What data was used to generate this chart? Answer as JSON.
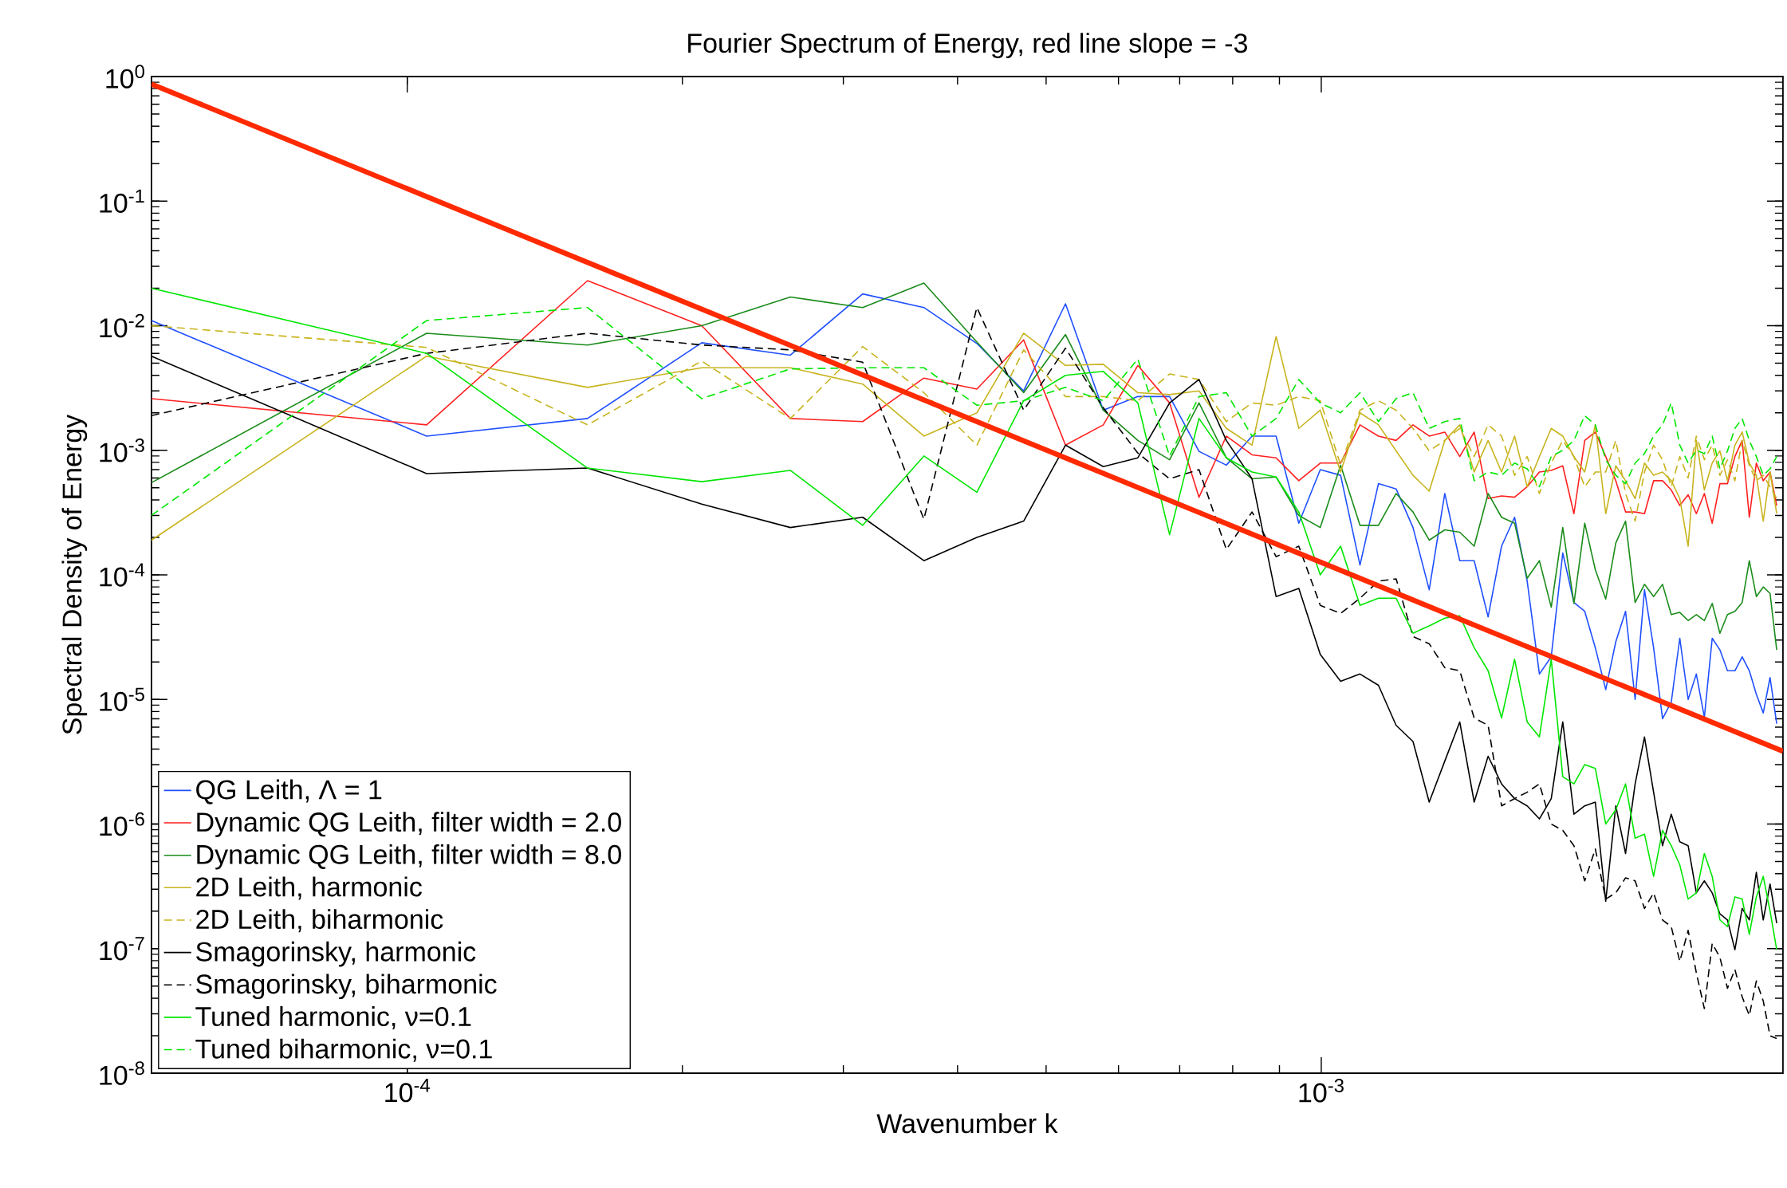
{
  "chart_data": {
    "type": "line",
    "title": "Fourier Spectrum of Energy, red line slope = -3",
    "xlabel": "Wavenumber k",
    "ylabel": "Spectral Density of Energy",
    "log": "xy",
    "legend": "bottom left",
    "xlim": [
      5.25e-05,
      0.0032
    ],
    "ylim": [
      1e-08,
      1
    ],
    "xticks": [
      {
        "value": 0.0001,
        "label": "10$^{-4}$"
      },
      {
        "value": 0.001,
        "label": "10$^{-3}$"
      }
    ],
    "yticks": [
      {
        "value": 1e-08,
        "label": "10$^{-8}$"
      },
      {
        "value": 1e-07,
        "label": "10$^{-7}$"
      },
      {
        "value": 1e-06,
        "label": "10$^{-6}$"
      },
      {
        "value": 1e-05,
        "label": "10$^{-5}$"
      },
      {
        "value": 0.0001,
        "label": "10$^{-4}$"
      },
      {
        "value": 0.001,
        "label": "10$^{-3}$"
      },
      {
        "value": 0.01,
        "label": "10$^{-2}$"
      },
      {
        "value": 0.1,
        "label": "10$^{-1}$"
      },
      {
        "value": 1,
        "label": "10$^{0}$"
      }
    ],
    "x": [
      5.25e-05,
      0.000105,
      0.0001575,
      0.00021,
      0.0002625,
      0.000315,
      0.0003675,
      0.00042,
      0.0004725,
      0.000525,
      0.0005775,
      0.00063,
      0.0006825,
      0.000735,
      0.0007875,
      0.00084,
      0.0008925,
      0.000945,
      0.0009975,
      0.00105,
      0.0011025,
      0.001155,
      0.0012075,
      0.00126,
      0.0013125,
      0.001365,
      0.0014175,
      0.00147,
      0.0015225,
      0.001575,
      0.0016275,
      0.00168,
      0.0017325,
      0.001785,
      0.0018375,
      0.00189,
      0.0019425,
      0.001995,
      0.0020475,
      0.0021,
      0.0021525,
      0.002205,
      0.0022575,
      0.00231,
      0.0023625,
      0.002415,
      0.0024675,
      0.00252,
      0.0025725,
      0.002625,
      0.0026775,
      0.00273,
      0.0027825,
      0.002835,
      0.0028875,
      0.00294,
      0.0029925,
      0.003045,
      0.0030975,
      0.00315
    ],
    "series": [
      {
        "name": "QG Leith,  Λ = 1",
        "color": "#1f4fff",
        "line_style": "solid",
        "values": [
          0.011,
          0.0013,
          0.0018,
          0.0073,
          0.0058,
          0.018,
          0.014,
          0.0072,
          0.003,
          0.015,
          0.0021,
          0.0027,
          0.0027,
          0.00098,
          0.00076,
          0.0013,
          0.0013,
          0.00026,
          0.0007,
          0.00063,
          0.00012,
          0.00054,
          0.00049,
          0.00024,
          7.6e-05,
          0.00045,
          0.00013,
          0.00013,
          4.6e-05,
          0.00017,
          0.00029,
          8.9e-05,
          1.6e-05,
          2.2e-05,
          0.00015,
          6e-05,
          5.1e-05,
          2.6e-05,
          1.2e-05,
          2.9e-05,
          5.1e-05,
          1e-05,
          7.6e-05,
          2.6e-05,
          7e-06,
          9.5e-06,
          3.1e-05,
          1e-05,
          1.6e-05,
          7.2e-06,
          3.1e-05,
          2.5e-05,
          1.7e-05,
          1.7e-05,
          2.2e-05,
          1.7e-05,
          1.1e-05,
          7.8e-06,
          1.5e-05,
          6.4e-06
        ]
      },
      {
        "name": "Dynamic QG Leith, filter width = 2.0",
        "color": "#ff2020",
        "line_style": "solid",
        "values": [
          0.0026,
          0.0016,
          0.023,
          0.01,
          0.0018,
          0.0017,
          0.0038,
          0.0031,
          0.0077,
          0.0011,
          0.0016,
          0.0048,
          0.0024,
          0.00042,
          0.0013,
          0.00092,
          0.00087,
          0.00057,
          0.00079,
          0.00079,
          0.0016,
          0.0013,
          0.0012,
          0.0016,
          0.0013,
          0.0014,
          0.00089,
          0.0014,
          0.00041,
          0.00043,
          0.00042,
          0.00051,
          0.00067,
          0.00069,
          0.00075,
          0.00031,
          0.0012,
          0.0014,
          0.00089,
          0.00057,
          0.00032,
          0.00032,
          0.00031,
          0.00057,
          0.00057,
          0.00048,
          0.00036,
          0.00044,
          0.00031,
          0.00045,
          0.00026,
          0.00054,
          0.00054,
          0.00089,
          0.0012,
          0.00029,
          0.00079,
          0.00057,
          0.00067,
          0.00036
        ]
      },
      {
        "name": "Dynamic QG Leith, filter width = 8.0",
        "color": "#1a8c1a",
        "line_style": "solid",
        "values": [
          0.00055,
          0.0087,
          0.007,
          0.01,
          0.017,
          0.014,
          0.022,
          0.0074,
          0.0029,
          0.0085,
          0.0021,
          0.0012,
          0.00084,
          0.0024,
          0.00087,
          0.00059,
          0.00061,
          0.0003,
          0.00024,
          0.00076,
          0.00025,
          0.00025,
          0.00045,
          0.00032,
          0.00019,
          0.00023,
          0.00022,
          0.00017,
          0.00045,
          0.00029,
          0.00026,
          9.4e-05,
          0.00013,
          5.5e-05,
          0.00024,
          5.9e-05,
          0.00026,
          0.00011,
          6.4e-05,
          0.00018,
          0.00027,
          6e-05,
          8.4e-05,
          6.7e-05,
          8.4e-05,
          4.8e-05,
          5e-05,
          4.3e-05,
          4.8e-05,
          4.3e-05,
          5.9e-05,
          3.4e-05,
          4.8e-05,
          5.1e-05,
          6e-05,
          0.00013,
          6.7e-05,
          8e-05,
          7.1e-05,
          2.5e-05
        ]
      },
      {
        "name": "2D Leith, harmonic",
        "color": "#c8b41e",
        "line_style": "solid",
        "values": [
          0.00019,
          0.0057,
          0.0032,
          0.0046,
          0.0046,
          0.0034,
          0.0013,
          0.002,
          0.0087,
          0.0048,
          0.0049,
          0.0029,
          0.0028,
          0.003,
          0.0015,
          0.0011,
          0.0082,
          0.0015,
          0.0021,
          0.00067,
          0.002,
          0.0016,
          0.00099,
          0.00063,
          0.00047,
          0.0012,
          0.0016,
          0.00067,
          0.0012,
          0.00067,
          0.0013,
          0.00051,
          0.00089,
          0.0015,
          0.0013,
          0.00089,
          0.00067,
          0.0016,
          0.00031,
          0.00075,
          0.00057,
          0.00041,
          0.00079,
          0.00063,
          0.00067,
          0.00057,
          0.00041,
          0.00017,
          0.0012,
          0.00048,
          0.00079,
          0.00099,
          0.00057,
          0.0011,
          0.0014,
          0.00079,
          0.00063,
          0.00027,
          0.00067,
          0.00031
        ]
      },
      {
        "name": "2D Leith, biharmonic",
        "color": "#c8b41e",
        "line_style": "dashed",
        "values": [
          0.01,
          0.0067,
          0.0016,
          0.0052,
          0.0018,
          0.0068,
          0.0029,
          0.0011,
          0.0064,
          0.0027,
          0.0027,
          0.0025,
          0.0041,
          0.0037,
          0.0017,
          0.0024,
          0.0023,
          0.0027,
          0.0025,
          0.00076,
          0.0021,
          0.0025,
          0.0021,
          0.0015,
          0.00099,
          0.0012,
          0.0015,
          0.00089,
          0.0016,
          0.0013,
          0.00063,
          0.00089,
          0.00045,
          0.00079,
          0.0012,
          0.00089,
          0.00051,
          0.00067,
          0.00067,
          0.0012,
          0.00045,
          0.00027,
          0.00067,
          0.0011,
          0.00084,
          0.00051,
          0.00089,
          0.0006,
          0.0013,
          0.00084,
          0.0011,
          0.00063,
          0.00084,
          0.00057,
          0.0012,
          0.00075,
          0.00057,
          0.00063,
          0.00051,
          0.00041
        ]
      },
      {
        "name": "Smagorinsky, harmonic",
        "color": "#000000",
        "line_style": "solid",
        "values": [
          0.0057,
          0.00065,
          0.00072,
          0.00037,
          0.00024,
          0.00029,
          0.00013,
          0.0002,
          0.00027,
          0.0011,
          0.00074,
          0.00087,
          0.0024,
          0.0037,
          0.0012,
          0.00059,
          6.7e-05,
          7.8e-05,
          2.3e-05,
          1.4e-05,
          1.6e-05,
          1.3e-05,
          6.2e-06,
          4.6e-06,
          1.5e-06,
          3.2e-06,
          6.6e-06,
          1.5e-06,
          3.5e-06,
          2.1e-06,
          1.6e-06,
          1.4e-06,
          1.1e-06,
          1.6e-06,
          6.6e-06,
          1.2e-06,
          1.4e-06,
          1.5e-06,
          2.4e-07,
          1.4e-06,
          5.8e-07,
          2.1e-06,
          5e-06,
          1.8e-06,
          6.7e-07,
          1.2e-06,
          7.2e-07,
          6.7e-07,
          2.8e-07,
          3.5e-07,
          2.8e-07,
          1.9e-07,
          1.7e-07,
          9.8e-08,
          2.1e-07,
          1.7e-07,
          4.1e-07,
          1.7e-07,
          3.3e-07,
          1.6e-07
        ]
      },
      {
        "name": "Smagorinsky, biharmonic",
        "color": "#000000",
        "line_style": "dashed",
        "values": [
          0.0019,
          0.006,
          0.0087,
          0.007,
          0.0064,
          0.0051,
          0.00028,
          0.014,
          0.0021,
          0.0066,
          0.0022,
          0.00095,
          0.00059,
          0.0007,
          0.00016,
          0.00032,
          0.00014,
          0.00017,
          5.7e-05,
          4.9e-05,
          6.5e-05,
          8.9e-05,
          9.3e-05,
          3.2e-05,
          2.8e-05,
          1.8e-05,
          1.7e-05,
          7.1e-06,
          6.2e-06,
          1.4e-06,
          1.6e-06,
          1.8e-06,
          2.1e-06,
          1e-06,
          8.9e-07,
          6.7e-07,
          3.5e-07,
          6.3e-07,
          2.5e-07,
          2.8e-07,
          3.7e-07,
          3.5e-07,
          2.1e-07,
          2.8e-07,
          1.7e-07,
          1.5e-07,
          7.9e-08,
          1.4e-07,
          6.4e-08,
          3.3e-08,
          1.1e-07,
          8.5e-08,
          4.8e-08,
          6.8e-08,
          4.1e-08,
          2.9e-08,
          5.5e-08,
          3.8e-08,
          2e-08,
          1.9e-08
        ]
      },
      {
        "name": "Tuned harmonic,  ν=0.1",
        "color": "#00e600",
        "line_style": "solid",
        "values": [
          0.02,
          0.006,
          0.00072,
          0.00056,
          0.00069,
          0.00025,
          0.0009,
          0.00046,
          0.0025,
          0.004,
          0.0043,
          0.0024,
          0.00021,
          0.0018,
          0.00087,
          0.00067,
          0.00061,
          0.00032,
          0.0001,
          0.00017,
          5.7e-05,
          6.5e-05,
          6.5e-05,
          3.4e-05,
          3.9e-05,
          4.5e-05,
          4.7e-05,
          2.6e-05,
          1.7e-05,
          7.1e-06,
          2.1e-05,
          6.6e-06,
          5e-06,
          2.1e-05,
          2.4e-06,
          2.1e-06,
          3e-06,
          2.8e-06,
          1e-06,
          1.3e-06,
          2.1e-06,
          7.7e-07,
          8.3e-07,
          3.8e-07,
          8.9e-07,
          6.7e-07,
          4.7e-07,
          2.5e-07,
          2.8e-07,
          5.8e-07,
          3.8e-07,
          1.7e-07,
          1.5e-07,
          2.6e-07,
          2.5e-07,
          1.3e-07,
          2.6e-07,
          3.8e-07,
          2e-07,
          9.8e-08
        ]
      },
      {
        "name": "Tuned biharmonic,  ν=0.1",
        "color": "#00e600",
        "line_style": "dashed",
        "values": [
          0.0003,
          0.011,
          0.014,
          0.0026,
          0.0045,
          0.0046,
          0.0046,
          0.0023,
          0.0025,
          0.0032,
          0.0025,
          0.0054,
          0.0009,
          0.0027,
          0.0029,
          0.0013,
          0.0018,
          0.0037,
          0.0024,
          0.002,
          0.0029,
          0.0017,
          0.0026,
          0.0029,
          0.0015,
          0.0017,
          0.0018,
          0.00057,
          0.00067,
          0.00063,
          0.00079,
          0.00071,
          0.00051,
          0.00089,
          0.001,
          0.0012,
          0.0019,
          0.0016,
          0.00084,
          0.00063,
          0.00054,
          0.00079,
          0.00094,
          0.0013,
          0.0016,
          0.0024,
          0.0011,
          0.00079,
          0.001,
          0.00094,
          0.0013,
          0.00071,
          0.00099,
          0.0015,
          0.0018,
          0.0012,
          0.00089,
          0.00063,
          0.00071,
          0.00089
        ]
      },
      {
        "type": "line",
        "color": "#ff2a00",
        "line_style": "solid",
        "x": [
          5.25e-05,
          0.0032
        ],
        "values": [
          0.87,
          3.84e-06
        ]
      }
    ]
  }
}
